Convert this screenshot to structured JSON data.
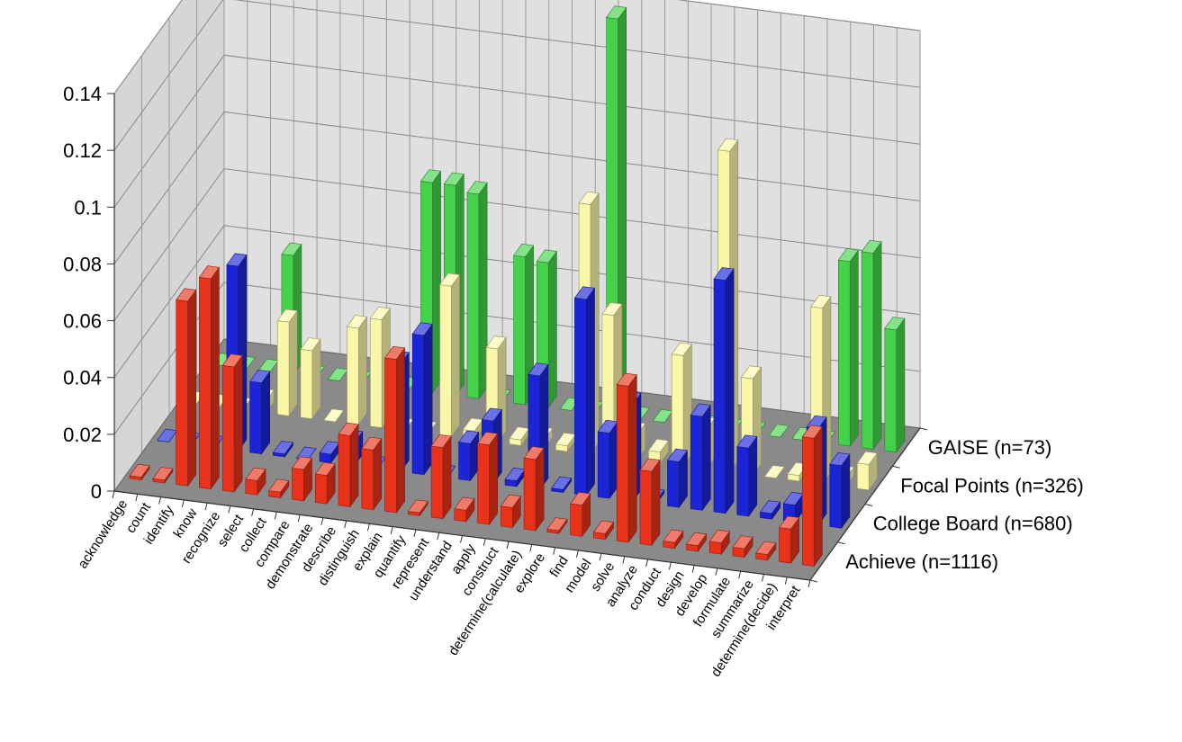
{
  "chart_data": {
    "type": "bar",
    "projection": "3d",
    "ylim": [
      0,
      0.14
    ],
    "yticks": [
      "0",
      "0.02",
      "0.04",
      "0.06",
      "0.08",
      "0.1",
      "0.12",
      "0.14"
    ],
    "grid": true,
    "categories": [
      "acknowledge",
      "count",
      "identify",
      "know",
      "recognize",
      "select",
      "collect",
      "compare",
      "demonstrate",
      "describe",
      "distinguish",
      "explain",
      "quantify",
      "represent",
      "understand",
      "apply",
      "construct",
      "determine(calculate)",
      "explore",
      "find",
      "model",
      "solve",
      "analyze",
      "conduct",
      "design",
      "develop",
      "formulate",
      "summarize",
      "determine(decide)",
      "interpret"
    ],
    "series": [
      {
        "name": "Achieve (n=1116)",
        "color": "#e8321a",
        "values": [
          0.001,
          0.001,
          0.065,
          0.074,
          0.044,
          0.005,
          0.002,
          0.011,
          0.01,
          0.025,
          0.021,
          0.054,
          0.001,
          0.025,
          0.004,
          0.028,
          0.007,
          0.025,
          0.001,
          0.011,
          0.002,
          0.055,
          0.026,
          0.002,
          0.002,
          0.004,
          0.003,
          0.002,
          0.012,
          0.045
        ]
      },
      {
        "name": "College Board (n=680)",
        "color": "#1b25d6",
        "values": [
          0.0,
          0.0,
          0.0,
          0.065,
          0.025,
          0.001,
          0.0,
          0.003,
          0.008,
          0.0,
          0.038,
          0.049,
          0.0,
          0.013,
          0.022,
          0.002,
          0.04,
          0.001,
          0.069,
          0.023,
          0.034,
          0.001,
          0.016,
          0.033,
          0.082,
          0.024,
          0.002,
          0.006,
          0.034,
          0.022
        ]
      },
      {
        "name": "Focal Points (n=326)",
        "color": "#fbf7a8",
        "values": [
          0.0,
          0.0,
          0.0,
          0.004,
          0.033,
          0.024,
          0.0,
          0.034,
          0.038,
          0.0,
          0.0,
          0.053,
          0.003,
          0.033,
          0.002,
          0.003,
          0.002,
          0.088,
          0.05,
          0.009,
          0.004,
          0.039,
          0.014,
          0.113,
          0.034,
          0.0,
          0.002,
          0.062,
          0.003,
          0.009
        ]
      },
      {
        "name": "GAISE (n=73)",
        "color": "#45d24a",
        "values": [
          0.0,
          0.0,
          0.0,
          0.042,
          0.0,
          0.0,
          0.0,
          0.0,
          0.0,
          0.074,
          0.074,
          0.072,
          0.0,
          0.052,
          0.051,
          0.0,
          0.0,
          0.14,
          0.0,
          0.0,
          0.0,
          0.0,
          0.0,
          0.0,
          0.0,
          0.0,
          0.0,
          0.065,
          0.069,
          0.043
        ]
      }
    ]
  }
}
